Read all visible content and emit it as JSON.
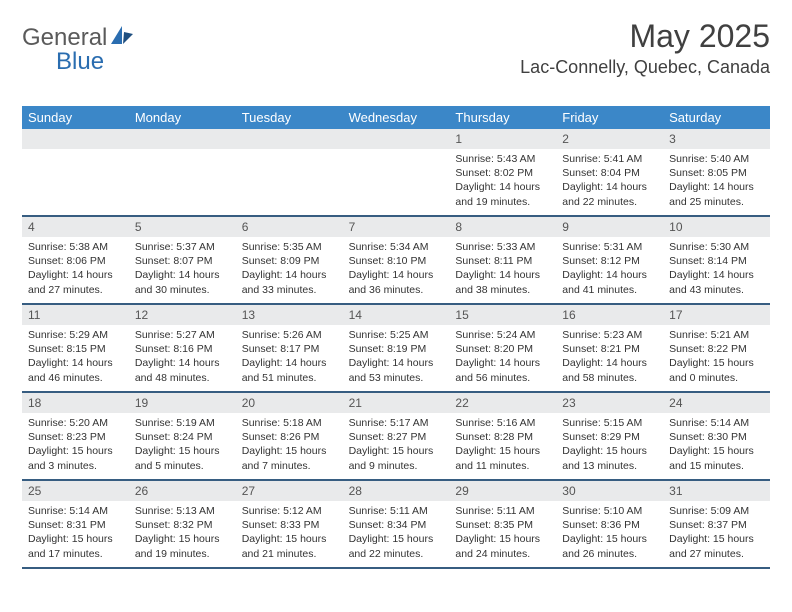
{
  "logo": {
    "text1": "General",
    "text2": "Blue"
  },
  "title": {
    "monthYear": "May 2025",
    "location": "Lac-Connelly, Quebec, Canada"
  },
  "colors": {
    "headerBar": "#3b87c8",
    "weekDivider": "#375d81",
    "dayNumBg": "#e9eaeb",
    "logoBlue": "#2a6db0",
    "textGray": "#5a5a5a"
  },
  "dow": [
    "Sunday",
    "Monday",
    "Tuesday",
    "Wednesday",
    "Thursday",
    "Friday",
    "Saturday"
  ],
  "weeks": [
    [
      {
        "n": "",
        "sunrise": "",
        "sunset": "",
        "daylight": ""
      },
      {
        "n": "",
        "sunrise": "",
        "sunset": "",
        "daylight": ""
      },
      {
        "n": "",
        "sunrise": "",
        "sunset": "",
        "daylight": ""
      },
      {
        "n": "",
        "sunrise": "",
        "sunset": "",
        "daylight": ""
      },
      {
        "n": "1",
        "sunrise": "Sunrise: 5:43 AM",
        "sunset": "Sunset: 8:02 PM",
        "daylight": "Daylight: 14 hours and 19 minutes."
      },
      {
        "n": "2",
        "sunrise": "Sunrise: 5:41 AM",
        "sunset": "Sunset: 8:04 PM",
        "daylight": "Daylight: 14 hours and 22 minutes."
      },
      {
        "n": "3",
        "sunrise": "Sunrise: 5:40 AM",
        "sunset": "Sunset: 8:05 PM",
        "daylight": "Daylight: 14 hours and 25 minutes."
      }
    ],
    [
      {
        "n": "4",
        "sunrise": "Sunrise: 5:38 AM",
        "sunset": "Sunset: 8:06 PM",
        "daylight": "Daylight: 14 hours and 27 minutes."
      },
      {
        "n": "5",
        "sunrise": "Sunrise: 5:37 AM",
        "sunset": "Sunset: 8:07 PM",
        "daylight": "Daylight: 14 hours and 30 minutes."
      },
      {
        "n": "6",
        "sunrise": "Sunrise: 5:35 AM",
        "sunset": "Sunset: 8:09 PM",
        "daylight": "Daylight: 14 hours and 33 minutes."
      },
      {
        "n": "7",
        "sunrise": "Sunrise: 5:34 AM",
        "sunset": "Sunset: 8:10 PM",
        "daylight": "Daylight: 14 hours and 36 minutes."
      },
      {
        "n": "8",
        "sunrise": "Sunrise: 5:33 AM",
        "sunset": "Sunset: 8:11 PM",
        "daylight": "Daylight: 14 hours and 38 minutes."
      },
      {
        "n": "9",
        "sunrise": "Sunrise: 5:31 AM",
        "sunset": "Sunset: 8:12 PM",
        "daylight": "Daylight: 14 hours and 41 minutes."
      },
      {
        "n": "10",
        "sunrise": "Sunrise: 5:30 AM",
        "sunset": "Sunset: 8:14 PM",
        "daylight": "Daylight: 14 hours and 43 minutes."
      }
    ],
    [
      {
        "n": "11",
        "sunrise": "Sunrise: 5:29 AM",
        "sunset": "Sunset: 8:15 PM",
        "daylight": "Daylight: 14 hours and 46 minutes."
      },
      {
        "n": "12",
        "sunrise": "Sunrise: 5:27 AM",
        "sunset": "Sunset: 8:16 PM",
        "daylight": "Daylight: 14 hours and 48 minutes."
      },
      {
        "n": "13",
        "sunrise": "Sunrise: 5:26 AM",
        "sunset": "Sunset: 8:17 PM",
        "daylight": "Daylight: 14 hours and 51 minutes."
      },
      {
        "n": "14",
        "sunrise": "Sunrise: 5:25 AM",
        "sunset": "Sunset: 8:19 PM",
        "daylight": "Daylight: 14 hours and 53 minutes."
      },
      {
        "n": "15",
        "sunrise": "Sunrise: 5:24 AM",
        "sunset": "Sunset: 8:20 PM",
        "daylight": "Daylight: 14 hours and 56 minutes."
      },
      {
        "n": "16",
        "sunrise": "Sunrise: 5:23 AM",
        "sunset": "Sunset: 8:21 PM",
        "daylight": "Daylight: 14 hours and 58 minutes."
      },
      {
        "n": "17",
        "sunrise": "Sunrise: 5:21 AM",
        "sunset": "Sunset: 8:22 PM",
        "daylight": "Daylight: 15 hours and 0 minutes."
      }
    ],
    [
      {
        "n": "18",
        "sunrise": "Sunrise: 5:20 AM",
        "sunset": "Sunset: 8:23 PM",
        "daylight": "Daylight: 15 hours and 3 minutes."
      },
      {
        "n": "19",
        "sunrise": "Sunrise: 5:19 AM",
        "sunset": "Sunset: 8:24 PM",
        "daylight": "Daylight: 15 hours and 5 minutes."
      },
      {
        "n": "20",
        "sunrise": "Sunrise: 5:18 AM",
        "sunset": "Sunset: 8:26 PM",
        "daylight": "Daylight: 15 hours and 7 minutes."
      },
      {
        "n": "21",
        "sunrise": "Sunrise: 5:17 AM",
        "sunset": "Sunset: 8:27 PM",
        "daylight": "Daylight: 15 hours and 9 minutes."
      },
      {
        "n": "22",
        "sunrise": "Sunrise: 5:16 AM",
        "sunset": "Sunset: 8:28 PM",
        "daylight": "Daylight: 15 hours and 11 minutes."
      },
      {
        "n": "23",
        "sunrise": "Sunrise: 5:15 AM",
        "sunset": "Sunset: 8:29 PM",
        "daylight": "Daylight: 15 hours and 13 minutes."
      },
      {
        "n": "24",
        "sunrise": "Sunrise: 5:14 AM",
        "sunset": "Sunset: 8:30 PM",
        "daylight": "Daylight: 15 hours and 15 minutes."
      }
    ],
    [
      {
        "n": "25",
        "sunrise": "Sunrise: 5:14 AM",
        "sunset": "Sunset: 8:31 PM",
        "daylight": "Daylight: 15 hours and 17 minutes."
      },
      {
        "n": "26",
        "sunrise": "Sunrise: 5:13 AM",
        "sunset": "Sunset: 8:32 PM",
        "daylight": "Daylight: 15 hours and 19 minutes."
      },
      {
        "n": "27",
        "sunrise": "Sunrise: 5:12 AM",
        "sunset": "Sunset: 8:33 PM",
        "daylight": "Daylight: 15 hours and 21 minutes."
      },
      {
        "n": "28",
        "sunrise": "Sunrise: 5:11 AM",
        "sunset": "Sunset: 8:34 PM",
        "daylight": "Daylight: 15 hours and 22 minutes."
      },
      {
        "n": "29",
        "sunrise": "Sunrise: 5:11 AM",
        "sunset": "Sunset: 8:35 PM",
        "daylight": "Daylight: 15 hours and 24 minutes."
      },
      {
        "n": "30",
        "sunrise": "Sunrise: 5:10 AM",
        "sunset": "Sunset: 8:36 PM",
        "daylight": "Daylight: 15 hours and 26 minutes."
      },
      {
        "n": "31",
        "sunrise": "Sunrise: 5:09 AM",
        "sunset": "Sunset: 8:37 PM",
        "daylight": "Daylight: 15 hours and 27 minutes."
      }
    ]
  ]
}
